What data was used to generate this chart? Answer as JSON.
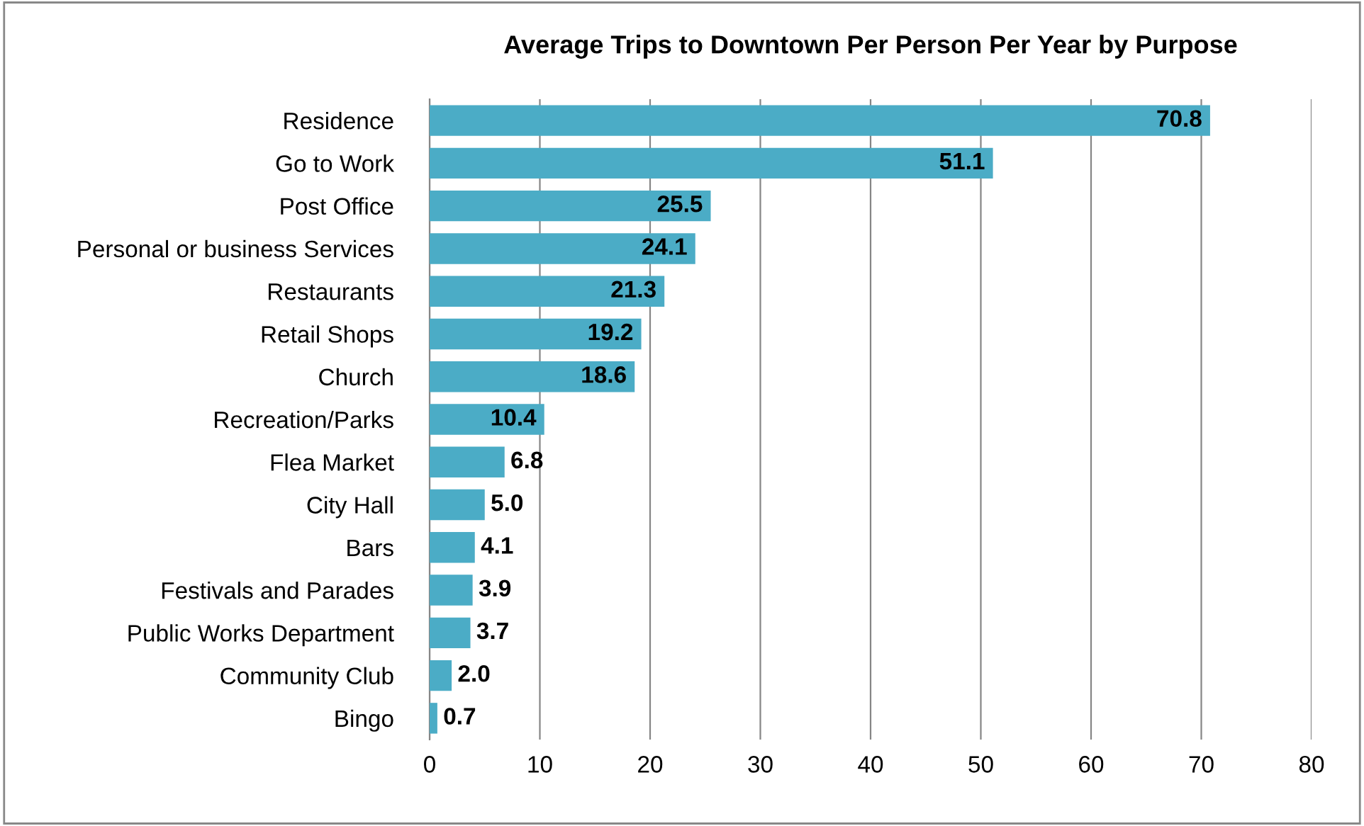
{
  "chart_data": {
    "type": "bar",
    "orientation": "horizontal",
    "title": "Average Trips to Downtown Per Person Per Year by Purpose",
    "categories": [
      "Residence",
      "Go to Work",
      "Post Office",
      "Personal or business Services",
      "Restaurants",
      "Retail Shops",
      "Church",
      "Recreation/Parks",
      "Flea Market",
      "City Hall",
      "Bars",
      "Festivals and Parades",
      "Public Works Department",
      "Community Club",
      "Bingo"
    ],
    "values": [
      70.8,
      51.1,
      25.5,
      24.1,
      21.3,
      19.2,
      18.6,
      10.4,
      6.8,
      5.0,
      4.1,
      3.9,
      3.7,
      2.0,
      0.7
    ],
    "value_labels": [
      "70.8",
      "51.1",
      "25.5",
      "24.1",
      "21.3",
      "19.2",
      "18.6",
      "10.4",
      "6.8",
      "5.0",
      "4.1",
      "3.9",
      "3.7",
      "2.0",
      "0.7"
    ],
    "color": "#4bacc6",
    "xlim": [
      0,
      80
    ],
    "xticks": [
      0,
      10,
      20,
      30,
      40,
      50,
      60,
      70,
      80
    ],
    "grid": "x",
    "legend": false
  }
}
